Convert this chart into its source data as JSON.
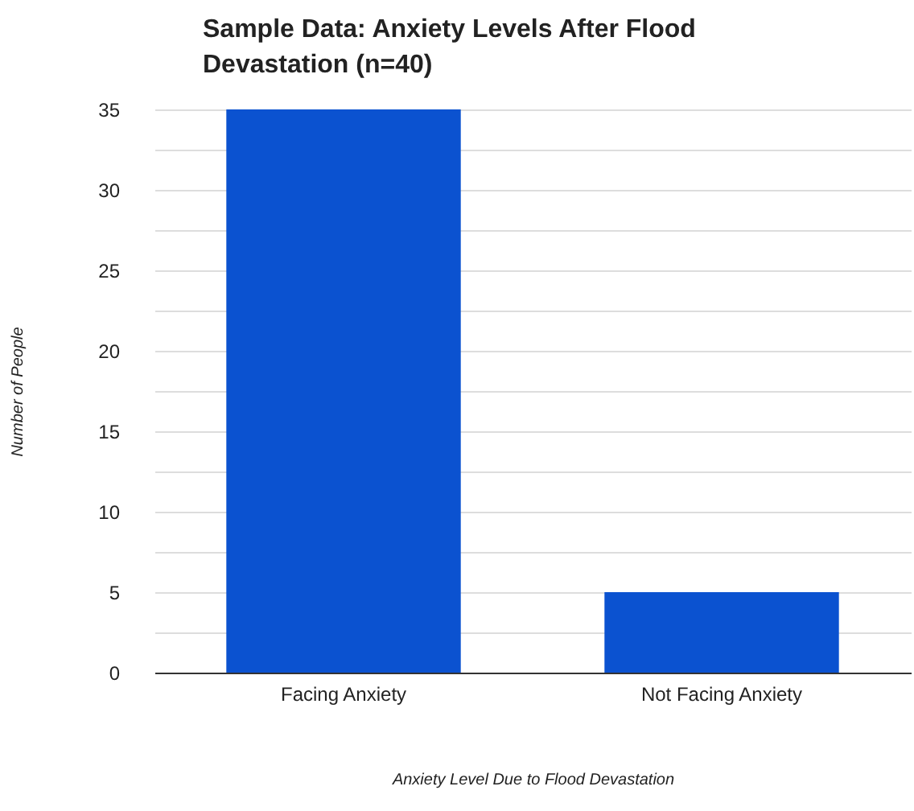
{
  "chart_data": {
    "type": "bar",
    "title": "Sample Data: Anxiety Levels After Flood Devastation (n=40)",
    "xlabel": "Anxiety Level Due to Flood Devastation",
    "ylabel": "Number of People",
    "categories": [
      "Facing Anxiety",
      "Not Facing Anxiety"
    ],
    "values": [
      35,
      5
    ],
    "color": "#0b52d0",
    "ylim": [
      0,
      35
    ],
    "yticks": [
      0,
      {
        "value": 2.5,
        "label": null
      },
      5,
      {
        "value": 7.5,
        "label": null
      },
      10,
      {
        "value": 12.5,
        "label": null
      },
      15,
      {
        "value": 17.5,
        "label": null
      },
      20,
      {
        "value": 22.5,
        "label": null
      },
      25,
      {
        "value": 27.5,
        "label": null
      },
      30,
      {
        "value": 32.5,
        "label": null
      },
      35
    ],
    "grid": true
  }
}
